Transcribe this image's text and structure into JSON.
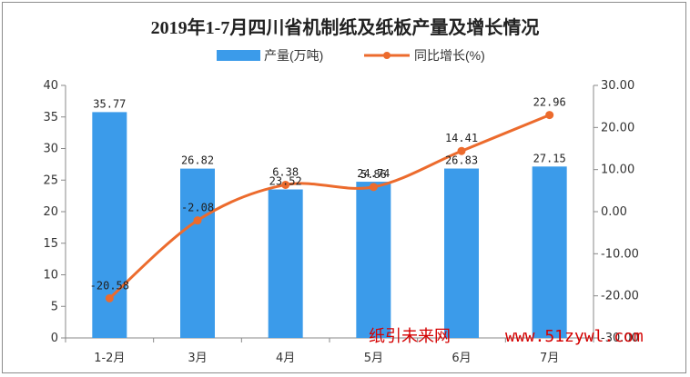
{
  "chart_data": {
    "type": "bar+line",
    "title": "2019年1-7月四川省机制纸及纸板产量及增长情况",
    "categories": [
      "1-2月",
      "3月",
      "4月",
      "5月",
      "6月",
      "7月"
    ],
    "series": [
      {
        "name": "产量(万吨)",
        "type": "bar",
        "axis": "left",
        "values": [
          35.77,
          26.82,
          23.52,
          24.74,
          26.83,
          27.15
        ],
        "labels": [
          "35.77",
          "26.82",
          "23.52",
          "24.74",
          "26.83",
          "27.15"
        ]
      },
      {
        "name": "同比增长(%)",
        "type": "line",
        "axis": "right",
        "values": [
          -20.58,
          -2.08,
          6.38,
          5.86,
          14.41,
          22.96
        ],
        "labels": [
          "-20.58",
          "-2.08",
          "6.38",
          "5.86",
          "14.41",
          "22.96"
        ]
      }
    ],
    "y_left": {
      "min": 0,
      "max": 40,
      "ticks": [
        "0",
        "5",
        "10",
        "15",
        "20",
        "25",
        "30",
        "35",
        "40"
      ]
    },
    "y_right": {
      "min": -30,
      "max": 30,
      "ticks": [
        "-30.00",
        "-20.00",
        "-10.00",
        "0.00",
        "10.00",
        "20.00",
        "30.00"
      ]
    },
    "legend_position": "top-center",
    "grid": false,
    "colors": {
      "bar": "#3b9bea",
      "line": "#ec6b2d"
    }
  },
  "watermark": {
    "left": "纸引未来网",
    "right": "www.51zywl.com"
  }
}
